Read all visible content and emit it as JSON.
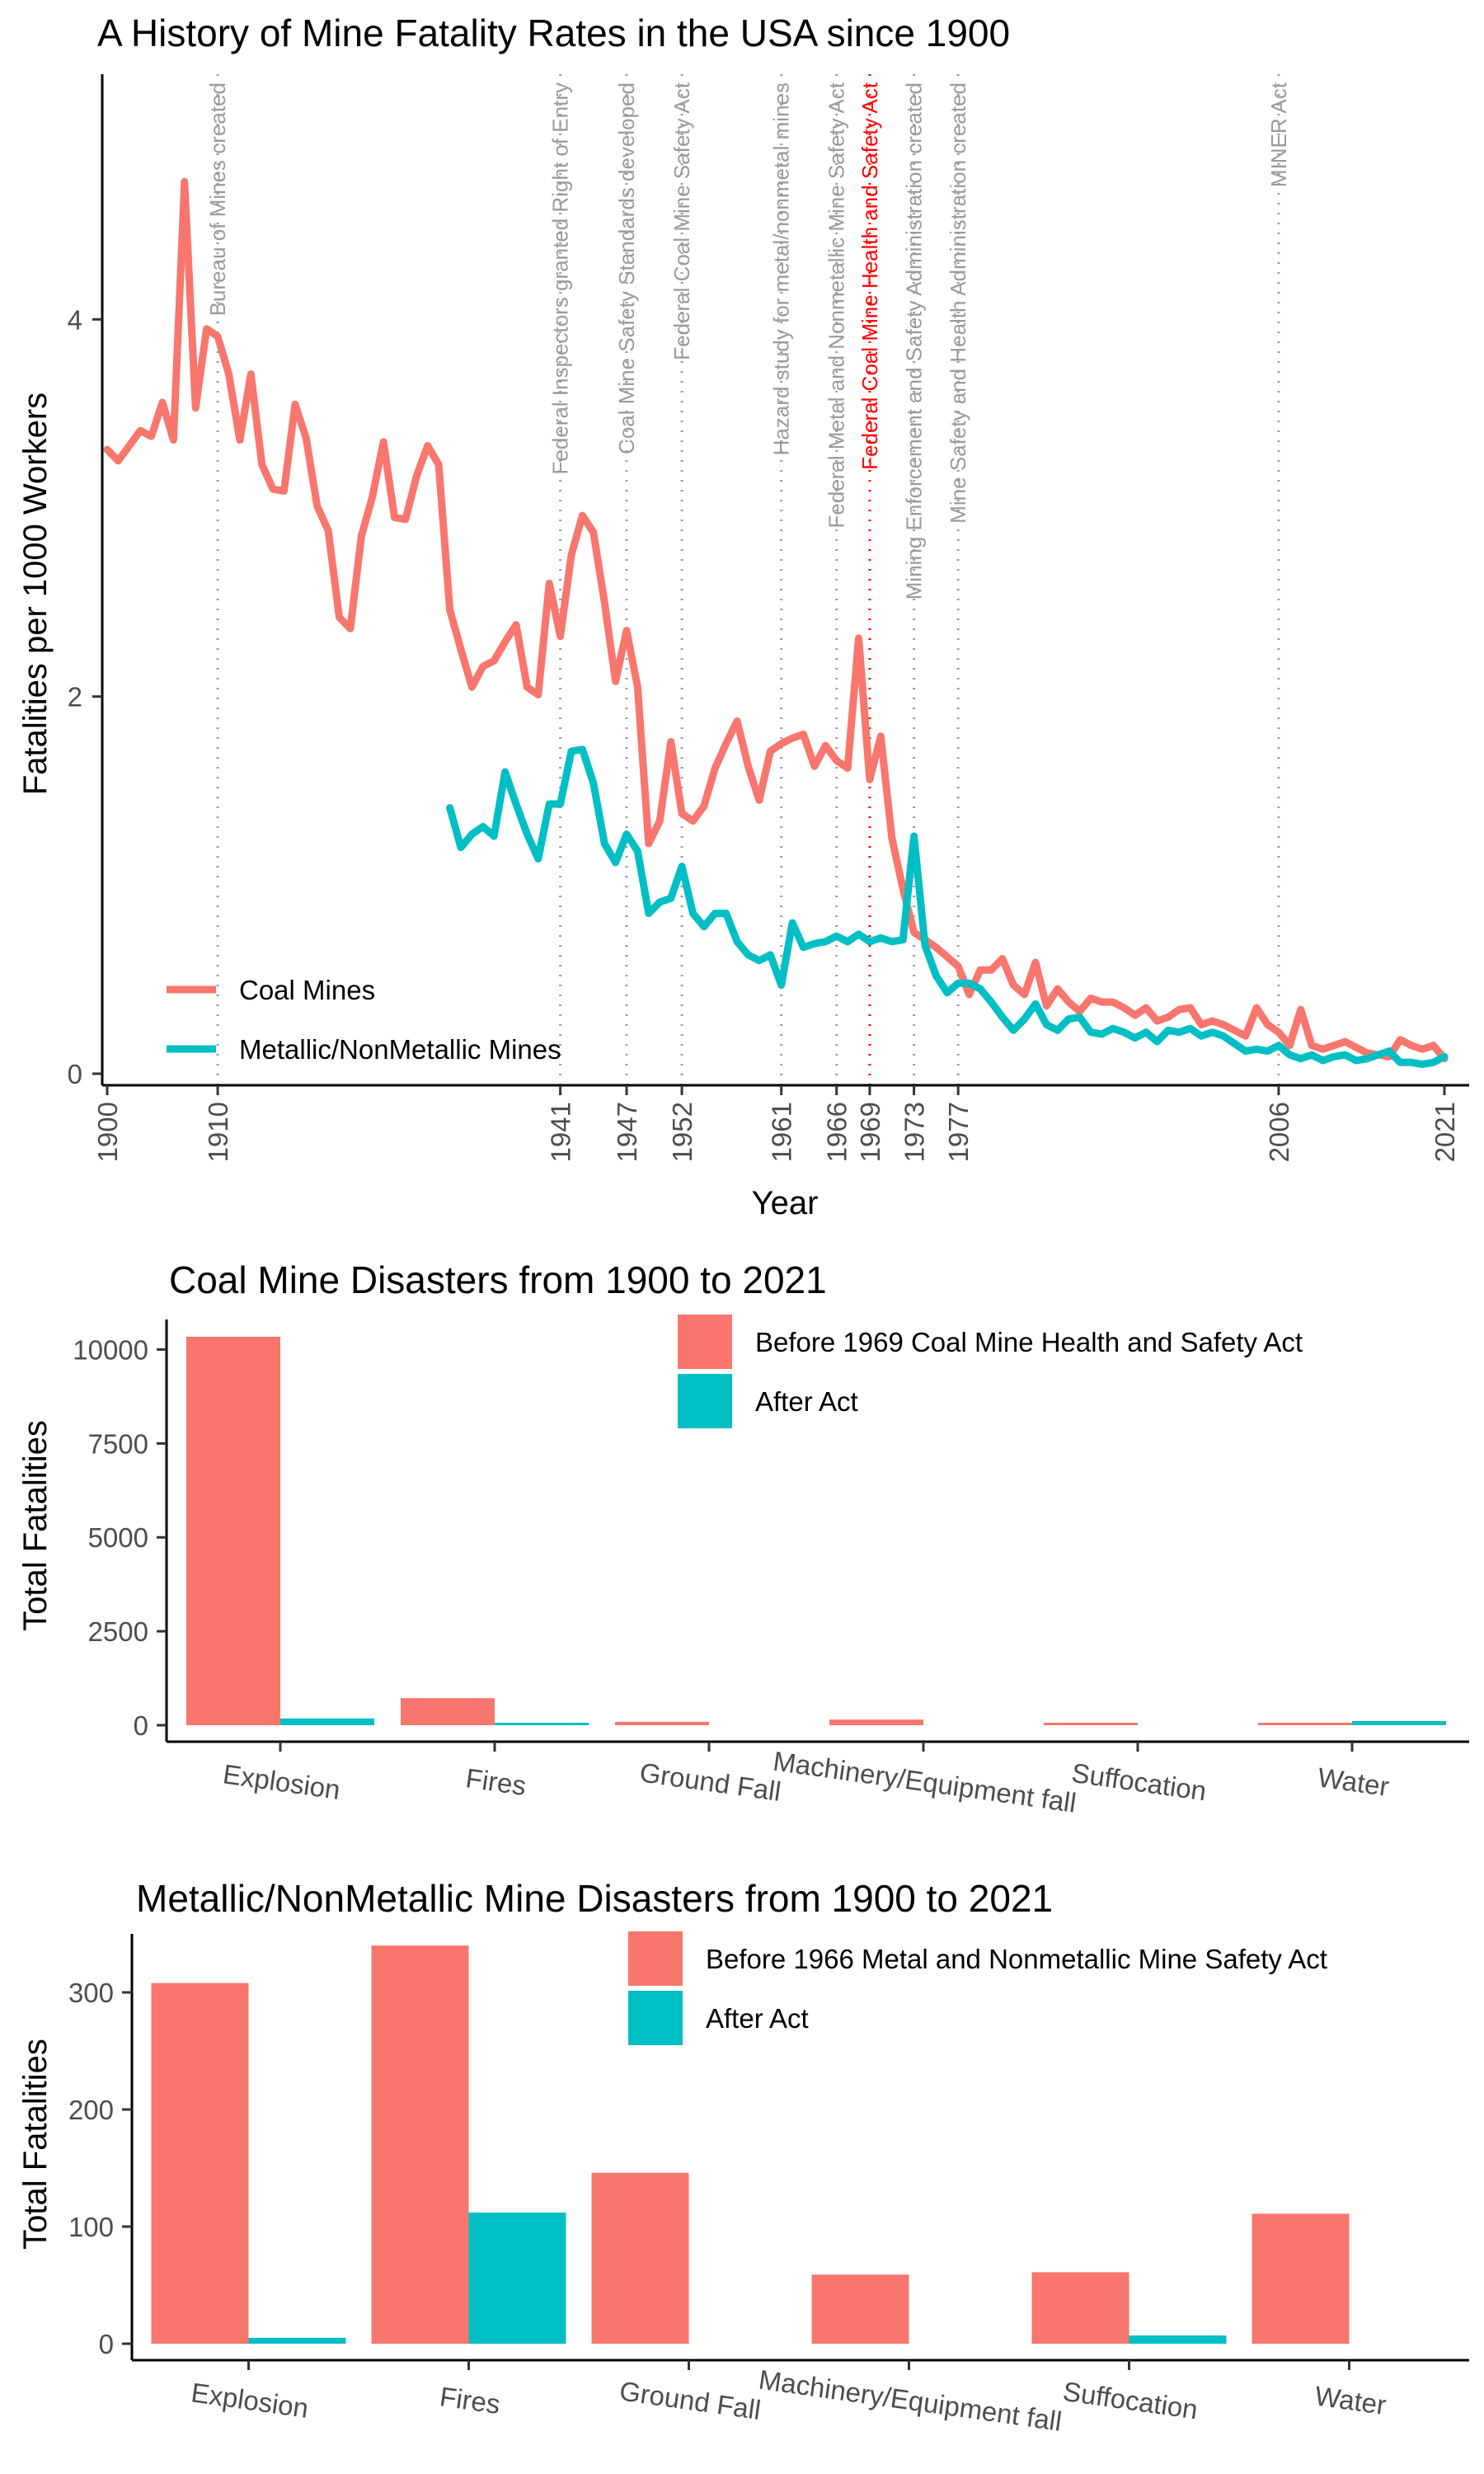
{
  "colors": {
    "coal": "#F8766D",
    "metal": "#00BFC4",
    "event": "#9a9a9a",
    "highlight": "#FF0000",
    "axis": "#000000"
  },
  "chart_data": [
    {
      "type": "line",
      "title": "A History of Mine Fatality Rates in the USA since 1900",
      "xlabel": "Year",
      "ylabel": "Fatalities per 1000 Workers",
      "xlim": [
        1900,
        2021
      ],
      "ylim": [
        0,
        5.3
      ],
      "x_ticks": [
        1900,
        1910,
        1941,
        1947,
        1952,
        1961,
        1966,
        1969,
        1973,
        1977,
        2006,
        2021
      ],
      "y_ticks": [
        0,
        2,
        4
      ],
      "grid": false,
      "legend_position": "bottom-left",
      "series": [
        {
          "name": "Coal Mines",
          "x": [
            1900,
            1901,
            1902,
            1903,
            1904,
            1905,
            1906,
            1907,
            1908,
            1909,
            1910,
            1911,
            1912,
            1913,
            1914,
            1915,
            1916,
            1917,
            1918,
            1919,
            1920,
            1921,
            1922,
            1923,
            1924,
            1925,
            1926,
            1927,
            1928,
            1929,
            1930,
            1931,
            1932,
            1933,
            1934,
            1935,
            1936,
            1937,
            1938,
            1939,
            1940,
            1941,
            1942,
            1943,
            1944,
            1945,
            1946,
            1947,
            1948,
            1949,
            1950,
            1951,
            1952,
            1953,
            1954,
            1955,
            1956,
            1957,
            1958,
            1959,
            1960,
            1961,
            1962,
            1963,
            1964,
            1965,
            1966,
            1967,
            1968,
            1969,
            1970,
            1971,
            1972,
            1973,
            1974,
            1975,
            1976,
            1977,
            1978,
            1979,
            1980,
            1981,
            1982,
            1983,
            1984,
            1985,
            1986,
            1987,
            1988,
            1989,
            1990,
            1991,
            1992,
            1993,
            1994,
            1995,
            1996,
            1997,
            1998,
            1999,
            2000,
            2001,
            2002,
            2003,
            2004,
            2005,
            2006,
            2007,
            2008,
            2009,
            2010,
            2011,
            2012,
            2013,
            2014,
            2015,
            2016,
            2017,
            2018,
            2019,
            2020,
            2021
          ],
          "values": [
            3.31,
            3.25,
            3.33,
            3.41,
            3.38,
            3.56,
            3.36,
            4.73,
            3.53,
            3.95,
            3.91,
            3.71,
            3.36,
            3.71,
            3.23,
            3.1,
            3.09,
            3.55,
            3.37,
            3.01,
            2.88,
            2.42,
            2.36,
            2.85,
            3.06,
            3.35,
            2.95,
            2.94,
            3.17,
            3.33,
            3.23,
            2.46,
            2.25,
            2.05,
            2.16,
            2.19,
            2.29,
            2.38,
            2.05,
            2.01,
            2.6,
            2.32,
            2.75,
            2.96,
            2.87,
            2.5,
            2.08,
            2.35,
            2.05,
            1.22,
            1.34,
            1.76,
            1.38,
            1.34,
            1.42,
            1.62,
            1.75,
            1.87,
            1.63,
            1.45,
            1.71,
            1.75,
            1.78,
            1.8,
            1.63,
            1.74,
            1.66,
            1.62,
            2.31,
            1.56,
            1.79,
            1.25,
            0.98,
            0.75,
            0.71,
            0.67,
            0.62,
            0.57,
            0.42,
            0.55,
            0.55,
            0.61,
            0.47,
            0.42,
            0.59,
            0.36,
            0.45,
            0.38,
            0.33,
            0.4,
            0.38,
            0.38,
            0.35,
            0.31,
            0.35,
            0.28,
            0.3,
            0.34,
            0.35,
            0.26,
            0.28,
            0.26,
            0.23,
            0.2,
            0.35,
            0.26,
            0.22,
            0.15,
            0.34,
            0.15,
            0.13,
            0.15,
            0.17,
            0.14,
            0.11,
            0.1,
            0.09,
            0.18,
            0.15,
            0.13,
            0.15,
            0.08
          ]
        },
        {
          "name": "Metallic/NonMetallic Mines",
          "x": [
            1931,
            1932,
            1933,
            1934,
            1935,
            1936,
            1937,
            1938,
            1939,
            1940,
            1941,
            1942,
            1943,
            1944,
            1945,
            1946,
            1947,
            1948,
            1949,
            1950,
            1951,
            1952,
            1953,
            1954,
            1955,
            1956,
            1957,
            1958,
            1959,
            1960,
            1961,
            1962,
            1963,
            1964,
            1965,
            1966,
            1967,
            1968,
            1969,
            1970,
            1971,
            1972,
            1973,
            1974,
            1975,
            1976,
            1977,
            1978,
            1979,
            1980,
            1981,
            1982,
            1983,
            1984,
            1985,
            1986,
            1987,
            1988,
            1989,
            1990,
            1991,
            1992,
            1993,
            1994,
            1995,
            1996,
            1997,
            1998,
            1999,
            2000,
            2001,
            2002,
            2003,
            2004,
            2005,
            2006,
            2007,
            2008,
            2009,
            2010,
            2011,
            2012,
            2013,
            2014,
            2015,
            2016,
            2017,
            2018,
            2019,
            2020,
            2021
          ],
          "values": [
            1.41,
            1.2,
            1.27,
            1.31,
            1.26,
            1.6,
            1.43,
            1.27,
            1.14,
            1.43,
            1.43,
            1.71,
            1.72,
            1.54,
            1.22,
            1.12,
            1.27,
            1.18,
            0.85,
            0.91,
            0.93,
            1.1,
            0.85,
            0.78,
            0.85,
            0.85,
            0.7,
            0.63,
            0.6,
            0.63,
            0.47,
            0.8,
            0.67,
            0.69,
            0.7,
            0.73,
            0.7,
            0.74,
            0.7,
            0.72,
            0.7,
            0.71,
            1.26,
            0.68,
            0.52,
            0.43,
            0.48,
            0.48,
            0.45,
            0.38,
            0.3,
            0.23,
            0.29,
            0.37,
            0.26,
            0.23,
            0.29,
            0.3,
            0.22,
            0.21,
            0.24,
            0.22,
            0.19,
            0.22,
            0.17,
            0.23,
            0.22,
            0.24,
            0.2,
            0.22,
            0.2,
            0.16,
            0.12,
            0.13,
            0.12,
            0.15,
            0.1,
            0.08,
            0.1,
            0.07,
            0.09,
            0.1,
            0.07,
            0.08,
            0.1,
            0.12,
            0.06,
            0.06,
            0.05,
            0.06,
            0.09
          ]
        }
      ],
      "events": [
        {
          "year": 1910,
          "label": "Bureau of Mines created",
          "highlight": false
        },
        {
          "year": 1941,
          "label": "Federal Inspectors granted Right of Entry",
          "highlight": false
        },
        {
          "year": 1947,
          "label": "Coal Mine Safety Standards developed",
          "highlight": false
        },
        {
          "year": 1952,
          "label": "Federal Coal Mine Safety Act",
          "highlight": false
        },
        {
          "year": 1961,
          "label": "Hazard study for metal/nonmetal mines",
          "highlight": false
        },
        {
          "year": 1966,
          "label": "Federal Metal and Nonmetallic Mine Safety Act",
          "highlight": false
        },
        {
          "year": 1969,
          "label": "Federal Coal Mine Health and Safety Act",
          "highlight": true
        },
        {
          "year": 1973,
          "label": "Mining Enforcement and Safety Administration created",
          "highlight": false
        },
        {
          "year": 1977,
          "label": "Mine Safety and Health Administration created",
          "highlight": false
        },
        {
          "year": 2006,
          "label": "MINER Act",
          "highlight": false
        }
      ]
    },
    {
      "type": "bar",
      "title": "Coal Mine Disasters from 1900 to 2021",
      "xlabel": "",
      "ylabel": "Total Fatalities",
      "ylim": [
        0,
        10800
      ],
      "y_ticks": [
        0,
        2500,
        5000,
        7500,
        10000
      ],
      "legend_position": "top-right",
      "categories": [
        "Explosion",
        "Fires",
        "Ground Fall",
        "Machinery/Equipment fall",
        "Suffocation",
        "Water"
      ],
      "series": [
        {
          "name": "Before 1969 Coal Mine Health and Safety Act",
          "values": [
            10340,
            720,
            90,
            150,
            20,
            50
          ]
        },
        {
          "name": "After Act",
          "values": [
            180,
            45,
            0,
            0,
            0,
            110
          ]
        }
      ]
    },
    {
      "type": "bar",
      "title": "Metallic/NonMetallic Mine Disasters from 1900 to 2021",
      "xlabel": "",
      "ylabel": "Total Fatalities",
      "ylim": [
        0,
        350
      ],
      "y_ticks": [
        0,
        100,
        200,
        300
      ],
      "legend_position": "top-right",
      "categories": [
        "Explosion",
        "Fires",
        "Ground Fall",
        "Machinery/Equipment fall",
        "Suffocation",
        "Water"
      ],
      "series": [
        {
          "name": "Before 1966 Metal and Nonmetallic Mine Safety Act",
          "values": [
            308,
            340,
            146,
            59,
            61,
            111
          ]
        },
        {
          "name": "After Act",
          "values": [
            5,
            112,
            0,
            0,
            7,
            0
          ]
        }
      ]
    }
  ]
}
